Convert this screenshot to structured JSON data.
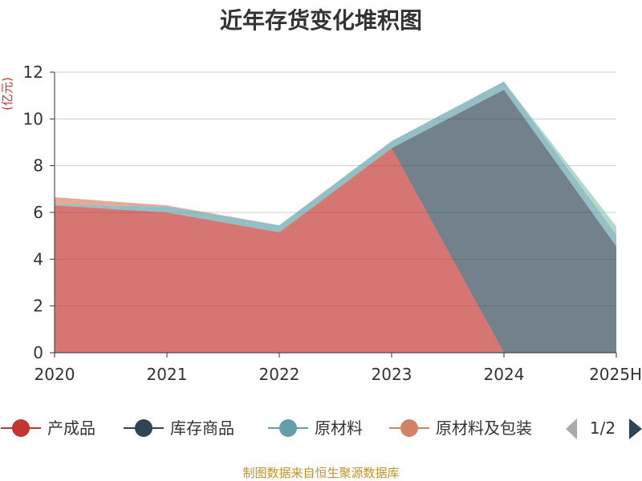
{
  "chart_data": {
    "type": "area",
    "stacked": true,
    "title": "近年存货变化堆积图",
    "unit_label": "(亿元)",
    "categories": [
      "2020",
      "2021",
      "2022",
      "2023",
      "2024",
      "2025H"
    ],
    "ylim": [
      0,
      12
    ],
    "yticks": [
      0,
      2,
      4,
      6,
      8,
      10,
      12
    ],
    "grid": true,
    "series": [
      {
        "name": "产成品",
        "color": "#c23531",
        "values": [
          6.3,
          6.0,
          5.15,
          8.75,
          0,
          null
        ]
      },
      {
        "name": "库存商品",
        "color": "#2f4554",
        "values": [
          0,
          0,
          0,
          0,
          11.25,
          4.55
        ]
      },
      {
        "name": "原材料",
        "color": "#61a0a8",
        "values": [
          0.05,
          0.25,
          0.3,
          0.3,
          0.35,
          0.5
        ]
      },
      {
        "name": "原材料及包装",
        "color": "#d48265",
        "values": [
          0.3,
          0.05,
          0,
          0,
          0,
          0
        ]
      },
      {
        "name": "",
        "color": "#91c7ae",
        "values": [
          0,
          0,
          0,
          0,
          0,
          0.35
        ]
      }
    ],
    "legend": {
      "placement": "bottom",
      "items": [
        "产成品",
        "库存商品",
        "原材料",
        "原材料及包装"
      ],
      "page": "1/2"
    }
  },
  "source": "制图数据来自恒生聚源数据库",
  "icons": {
    "prev": "triangle-left-icon",
    "next": "triangle-right-icon"
  }
}
